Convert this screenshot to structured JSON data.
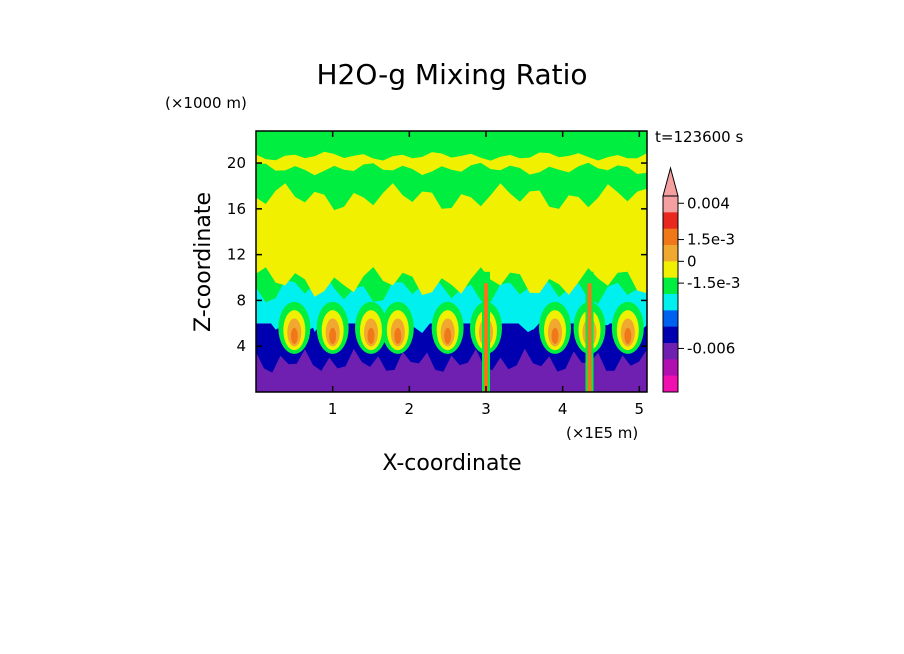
{
  "chart_data": {
    "type": "heatmap",
    "title": "H2O-g Mixing Ratio",
    "xlabel": "X-coordinate",
    "ylabel": "Z-coordinate",
    "x_unit": "(×1E5 m)",
    "y_unit": "(×1000 m)",
    "time_label": "t=123600 s",
    "xlim": [
      0,
      5.1
    ],
    "ylim": [
      0,
      22.8
    ],
    "x_ticks": [
      "1",
      "2",
      "3",
      "4",
      "5"
    ],
    "y_ticks": [
      "4",
      "8",
      "12",
      "16",
      "20"
    ],
    "x_tick_values": [
      1,
      2,
      3,
      4,
      5
    ],
    "y_tick_values": [
      4,
      8,
      12,
      16,
      20
    ],
    "colorbar": {
      "labels": [
        "0.004",
        "1.5e-3",
        "0",
        "-1.5e-3",
        "-0.006"
      ],
      "label_values": [
        0.004,
        0.0015,
        0,
        -0.0015,
        -0.006
      ],
      "range": [
        -0.009,
        0.0045
      ],
      "colors_top_to_bottom": [
        "#f4a0a0",
        "#e8281e",
        "#f07818",
        "#f0a830",
        "#f0f000",
        "#00ee40",
        "#00f0f0",
        "#0060f0",
        "#0000b0",
        "#7020b0",
        "#b010b0",
        "#f010b0"
      ]
    },
    "field_bands": [
      {
        "z_range": [
          0,
          3
        ],
        "level": -0.006,
        "color": "#7020b0"
      },
      {
        "z_range": [
          3,
          6
        ],
        "level": -0.0015,
        "color": "#0000b0"
      },
      {
        "z_range": [
          6,
          9
        ],
        "level": 0.0005,
        "color": "#00f0f0"
      },
      {
        "z_range": [
          9,
          17
        ],
        "level": 0.0,
        "color": "#f0f000"
      },
      {
        "z_range": [
          17,
          22.8
        ],
        "level": 0.0,
        "color": "#00ee40"
      }
    ],
    "plumes_x": [
      0.5,
      1.0,
      1.5,
      1.85,
      2.5,
      3.0,
      3.9,
      4.35,
      4.85
    ],
    "grid": false,
    "legend_position": "right"
  }
}
